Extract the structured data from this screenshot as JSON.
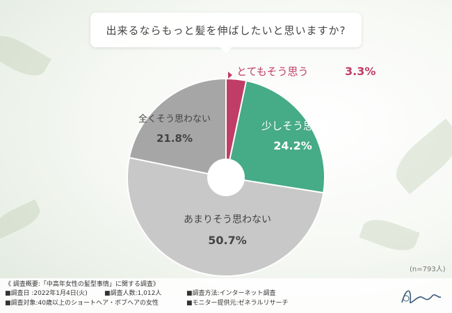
{
  "title": "出来るならもっと髪を伸ばしたいと思いますか?",
  "n_label": "(n=793人)",
  "survey": {
    "heading": "《 調査概要:「中高年女性の髪型事情」に関する調査》",
    "date": "■調査日 :2022年1月4日(火)",
    "count": "■調査人数:1,012人",
    "method": "■調査方法:インターネット調査",
    "target": "■調査対象:40歳以上のショートヘア・ボブヘアの女性",
    "provider": "■モニター提供元:ゼネラルリサーチ"
  },
  "chart_data": {
    "type": "pie",
    "title": "出来るならもっと髪を伸ばしたいと思いますか?",
    "slices": [
      {
        "label": "とてもそう思う",
        "value": 3.3,
        "value_label": "3.3%",
        "color": "#c03d68",
        "label_color": "#c03d68"
      },
      {
        "label": "少しそう思う",
        "value": 24.2,
        "value_label": "24.2%",
        "color": "#46ab87",
        "label_color": "#ffffff"
      },
      {
        "label": "あまりそう思わない",
        "value": 50.7,
        "value_label": "50.7%",
        "color": "#c8c8c8",
        "label_color": "#444444"
      },
      {
        "label": "全くそう思わない",
        "value": 21.8,
        "value_label": "21.8%",
        "color": "#a6a6a6",
        "label_color": "#444444"
      }
    ],
    "donut_hole": true,
    "start_angle": "12 o'clock, clockwise"
  }
}
